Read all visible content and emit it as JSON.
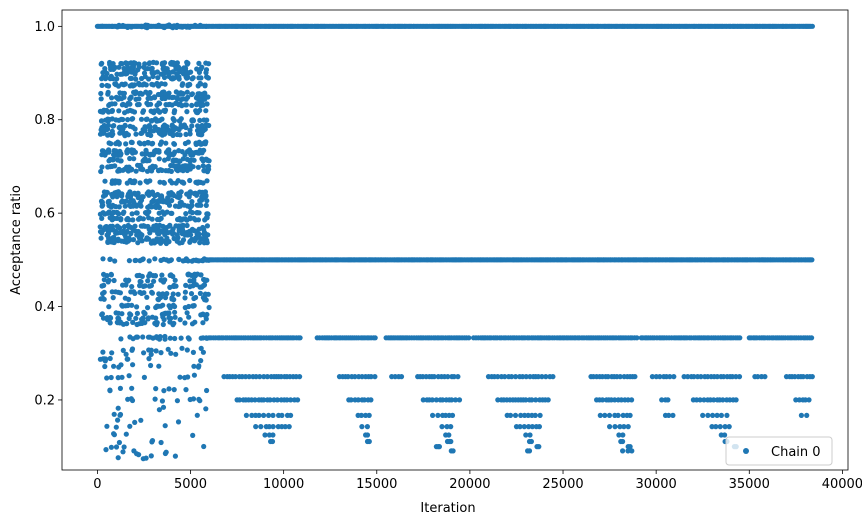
{
  "chart_data": {
    "type": "scatter",
    "title": "",
    "xlabel": "Iteration",
    "ylabel": "Acceptance ratio",
    "xlim": [
      -1900,
      40300
    ],
    "ylim": [
      0.05,
      1.035
    ],
    "xticks": [
      0,
      5000,
      10000,
      15000,
      20000,
      25000,
      30000,
      35000,
      40000
    ],
    "xtick_labels": [
      "0",
      "5000",
      "10000",
      "15000",
      "20000",
      "25000",
      "30000",
      "35000",
      "40000"
    ],
    "yticks": [
      0.2,
      0.4,
      0.6,
      0.8,
      1.0
    ],
    "ytick_labels": [
      "0.2",
      "0.4",
      "0.6",
      "0.8",
      "1.0"
    ],
    "grid": false,
    "legend": {
      "position": "lower-right",
      "entries": [
        "Chain 0"
      ]
    },
    "series": [
      {
        "name": "Chain 0",
        "color": "#1f77b4",
        "marker": "circle",
        "n_iterations": 38400,
        "burn_in_end": 6000,
        "burn_in_levels": [
          1.0,
          0.92,
          0.91,
          0.9,
          0.89,
          0.875,
          0.857,
          0.846,
          0.833,
          0.818,
          0.8,
          0.786,
          0.778,
          0.769,
          0.75,
          0.733,
          0.727,
          0.714,
          0.7,
          0.692,
          0.667,
          0.643,
          0.636,
          0.625,
          0.615,
          0.6,
          0.588,
          0.571,
          0.563,
          0.556,
          0.545,
          0.538,
          0.5,
          0.467,
          0.455,
          0.444,
          0.429,
          0.417,
          0.4,
          0.385,
          0.375,
          0.364,
          0.333,
          0.308,
          0.3,
          0.286,
          0.273,
          0.25,
          0.222,
          0.2,
          0.182,
          0.167,
          0.154,
          0.143,
          0.125,
          0.111,
          0.1,
          0.091,
          0.083,
          0.077
        ],
        "post_levels": [
          1.0,
          0.5,
          0.333,
          0.25,
          0.2,
          0.167,
          0.143,
          0.125,
          0.111,
          0.1,
          0.091
        ],
        "post_segments": [
          {
            "level": 1.0,
            "ranges": [
              [
                0,
                38400
              ]
            ]
          },
          {
            "level": 0.5,
            "ranges": [
              [
                6000,
                38400
              ]
            ]
          },
          {
            "level": 0.333,
            "ranges": [
              [
                6000,
                11000
              ],
              [
                11800,
                15000
              ],
              [
                15500,
                20000
              ],
              [
                20200,
                29000
              ],
              [
                29200,
                34500
              ],
              [
                35000,
                38400
              ]
            ]
          },
          {
            "level": 0.25,
            "ranges": [
              [
                6800,
                11000
              ],
              [
                13000,
                15000
              ],
              [
                15800,
                16500
              ],
              [
                17200,
                19500
              ],
              [
                21000,
                24500
              ],
              [
                26500,
                29000
              ],
              [
                29800,
                31000
              ],
              [
                31500,
                34500
              ],
              [
                35300,
                36000
              ],
              [
                37000,
                38400
              ]
            ]
          },
          {
            "level": 0.2,
            "ranges": [
              [
                7500,
                10800
              ],
              [
                13500,
                14800
              ],
              [
                17500,
                19500
              ],
              [
                21500,
                24300
              ],
              [
                26800,
                28800
              ],
              [
                30300,
                30700
              ],
              [
                32000,
                34300
              ],
              [
                37500,
                38300
              ]
            ]
          },
          {
            "level": 0.167,
            "ranges": [
              [
                8000,
                10500
              ],
              [
                14000,
                14600
              ],
              [
                18000,
                19300
              ],
              [
                22000,
                24000
              ],
              [
                27000,
                28600
              ],
              [
                30500,
                31000
              ],
              [
                32500,
                34000
              ],
              [
                37800,
                38200
              ]
            ]
          },
          {
            "level": 0.143,
            "ranges": [
              [
                8500,
                10300
              ],
              [
                14200,
                14500
              ],
              [
                18500,
                19000
              ],
              [
                22500,
                23800
              ],
              [
                27500,
                28500
              ],
              [
                33000,
                34000
              ]
            ]
          },
          {
            "level": 0.125,
            "ranges": [
              [
                9000,
                9500
              ],
              [
                14400,
                14600
              ],
              [
                18700,
                19000
              ],
              [
                23000,
                23500
              ],
              [
                28000,
                28300
              ],
              [
                33500,
                33800
              ]
            ]
          },
          {
            "level": 0.111,
            "ranges": [
              [
                9300,
                9500
              ],
              [
                14500,
                14700
              ],
              [
                18800,
                19000
              ],
              [
                23200,
                23400
              ],
              [
                28100,
                28300
              ],
              [
                33700,
                33900
              ]
            ]
          },
          {
            "level": 0.1,
            "ranges": [
              [
                18200,
                18400
              ],
              [
                23600,
                23800
              ],
              [
                28500,
                28700
              ],
              [
                34200,
                34400
              ]
            ]
          },
          {
            "level": 0.091,
            "ranges": [
              [
                19000,
                19200
              ],
              [
                23100,
                23300
              ],
              [
                28200,
                28700
              ]
            ]
          }
        ]
      }
    ]
  }
}
